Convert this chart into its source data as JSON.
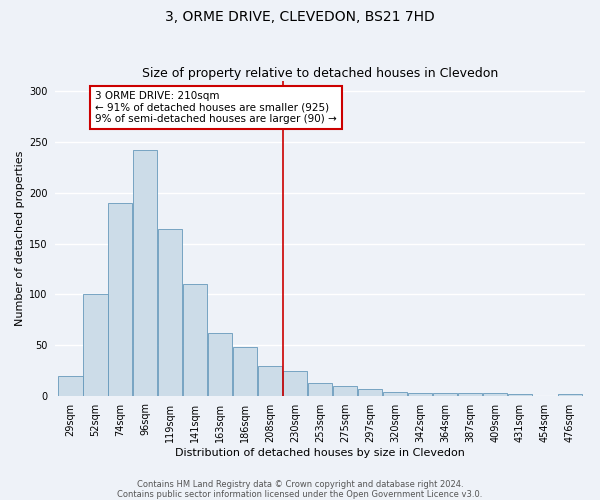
{
  "title": "3, ORME DRIVE, CLEVEDON, BS21 7HD",
  "subtitle": "Size of property relative to detached houses in Clevedon",
  "xlabel": "Distribution of detached houses by size in Clevedon",
  "ylabel": "Number of detached properties",
  "bin_labels": [
    "29sqm",
    "52sqm",
    "74sqm",
    "96sqm",
    "119sqm",
    "141sqm",
    "163sqm",
    "186sqm",
    "208sqm",
    "230sqm",
    "253sqm",
    "275sqm",
    "297sqm",
    "320sqm",
    "342sqm",
    "364sqm",
    "387sqm",
    "409sqm",
    "431sqm",
    "454sqm",
    "476sqm"
  ],
  "bar_values": [
    20,
    100,
    190,
    242,
    164,
    110,
    62,
    48,
    30,
    25,
    13,
    10,
    7,
    4,
    3,
    3,
    3,
    3,
    2,
    0,
    2
  ],
  "bar_color": "#ccdce8",
  "bar_edgecolor": "#6699bb",
  "vline_color": "#cc0000",
  "annotation_text": "3 ORME DRIVE: 210sqm\n← 91% of detached houses are smaller (925)\n9% of semi-detached houses are larger (90) →",
  "annotation_box_edgecolor": "#cc0000",
  "ylim": [
    0,
    310
  ],
  "yticks": [
    0,
    50,
    100,
    150,
    200,
    250,
    300
  ],
  "footer_line1": "Contains HM Land Registry data © Crown copyright and database right 2024.",
  "footer_line2": "Contains public sector information licensed under the Open Government Licence v3.0.",
  "background_color": "#eef2f8",
  "grid_color": "#ffffff",
  "title_fontsize": 10,
  "subtitle_fontsize": 9,
  "axis_label_fontsize": 8,
  "tick_fontsize": 7,
  "annotation_fontsize": 7.5,
  "footer_fontsize": 6
}
